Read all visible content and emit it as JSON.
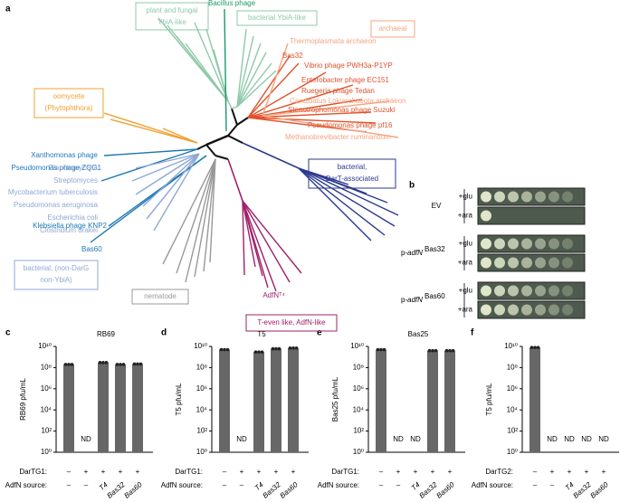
{
  "panel_labels": [
    "a",
    "b",
    "c",
    "d",
    "e",
    "f"
  ],
  "tree": {
    "groups": [
      {
        "label": "plant and fungal",
        "label2": "YbiA-like",
        "color": "#8fc9a9"
      },
      {
        "label": "bacterial YbiA-like",
        "color": "#8fc9a9"
      },
      {
        "label": "archaeal",
        "color": "#f4a582"
      },
      {
        "label": "oomycete",
        "label2": "(Phytophthora)",
        "color": "#f0a030"
      },
      {
        "label": "bacterial,",
        "label2": "DarT-associated",
        "color": "#2b3a8f"
      },
      {
        "label": "bacterial, (non-DarG",
        "label2": "non-YbiA)",
        "color": "#8fa8d4"
      },
      {
        "label": "nematode",
        "color": "#999999"
      },
      {
        "label": "T-even like, AdfN-like",
        "color": "#a0206a"
      }
    ],
    "leaves": [
      {
        "label": "Bacillus phage",
        "color": "#1a9a6a"
      },
      {
        "label": "Thermoplasmata archaeon",
        "color": "#f4a582"
      },
      {
        "label": "Bas32",
        "color": "#e0522c"
      },
      {
        "label": "Vibrio phage PWH3a-P1YP",
        "color": "#e0522c"
      },
      {
        "label": "Enterobacter phage EC151",
        "color": "#e0522c"
      },
      {
        "label": "Ruegeria phage Tedan",
        "color": "#e0522c"
      },
      {
        "label": "Candidatus Lokiarchaeota archaeon",
        "color": "#f4a582"
      },
      {
        "label": "Stenotrophomonas phage Suzuki",
        "color": "#e0522c"
      },
      {
        "label": "Pseudomonas phage pf16",
        "color": "#e0522c"
      },
      {
        "label": "Methanobrevibacter ruminantium",
        "color": "#f4a582"
      },
      {
        "label": "Xanthomonas phage",
        "color": "#1f78b4"
      },
      {
        "label": "Pseudomonas phage ZQG1",
        "color": "#1f78b4"
      },
      {
        "label": "Planctomycetia",
        "color": "#8fa8d4"
      },
      {
        "label": "Streptomyces",
        "color": "#8fa8d4"
      },
      {
        "label": "Mycobacterium tuberculosis",
        "color": "#8fa8d4"
      },
      {
        "label": "Pseudomonas aeruginosa",
        "color": "#8fa8d4"
      },
      {
        "label": "Escherichia coli",
        "color": "#8fa8d4"
      },
      {
        "label": "Clostridium drakei",
        "color": "#8fa8d4"
      },
      {
        "label": "Klebsiella phage KNP2",
        "color": "#1f78b4"
      },
      {
        "label": "Bas60",
        "color": "#1f78b4"
      },
      {
        "label": "AdfNᵀ⁴",
        "color": "#a0206a"
      }
    ]
  },
  "plate": {
    "groups": [
      {
        "label": "EV",
        "rows": [
          "+glu",
          "+ara"
        ]
      },
      {
        "label": "p-",
        "gene": "adfN",
        "sup": "Bas32",
        "rows": [
          "+glu",
          "+ara"
        ]
      },
      {
        "label": "p-",
        "gene": "adfN",
        "sup": "Bas60",
        "rows": [
          "+glu",
          "+ara"
        ]
      }
    ]
  },
  "chart_data": [
    {
      "type": "bar",
      "title": "RB69",
      "y_label": "RB69 pfu/mL",
      "values": [
        200000000,
        null,
        300000000,
        200000000,
        220000000
      ],
      "value_labels": [
        null,
        "ND",
        null,
        null,
        null
      ],
      "color": "#676767",
      "log_scale": true,
      "ylim": [
        1,
        10000000000
      ],
      "yticks": [
        {
          "value": 1,
          "label": "10⁰"
        },
        {
          "value": 100,
          "label": "10²"
        },
        {
          "value": 10000,
          "label": "10⁴"
        },
        {
          "value": 1000000,
          "label": "10⁶"
        },
        {
          "value": 100000000,
          "label": "10⁸"
        },
        {
          "value": 10000000000,
          "label": "10¹⁰"
        }
      ],
      "rows": [
        {
          "label": "DarTG1:",
          "values": [
            "–",
            "+",
            "+",
            "+",
            "+"
          ]
        },
        {
          "label": "AdfN source:",
          "values": [
            "–",
            "–",
            "T4",
            "Bas32",
            "Bas60"
          ]
        }
      ]
    },
    {
      "type": "bar",
      "title": "T5",
      "y_label": "T5 pfu/mL",
      "values": [
        5000000000,
        null,
        3000000000,
        6000000000,
        7000000000
      ],
      "value_labels": [
        null,
        "ND",
        null,
        null,
        null
      ],
      "color": "#676767",
      "log_scale": true,
      "ylim": [
        1,
        10000000000
      ],
      "yticks": [
        {
          "value": 1,
          "label": "10⁰"
        },
        {
          "value": 100,
          "label": "10²"
        },
        {
          "value": 10000,
          "label": "10⁴"
        },
        {
          "value": 1000000,
          "label": "10⁶"
        },
        {
          "value": 100000000,
          "label": "10⁸"
        },
        {
          "value": 10000000000,
          "label": "10¹⁰"
        }
      ],
      "rows": [
        {
          "label": "DarTG1:",
          "values": [
            "–",
            "+",
            "+",
            "+",
            "+"
          ]
        },
        {
          "label": "AdfN source:",
          "values": [
            "–",
            "–",
            "T4",
            "Bas32",
            "Bas60"
          ]
        }
      ]
    },
    {
      "type": "bar",
      "title": "Bas25",
      "y_label": "Bas25 pfu/mL",
      "values": [
        5000000000,
        null,
        null,
        4000000000,
        4000000000
      ],
      "value_labels": [
        null,
        "ND",
        "ND",
        null,
        null
      ],
      "color": "#676767",
      "log_scale": true,
      "ylim": [
        1,
        10000000000
      ],
      "yticks": [
        {
          "value": 1,
          "label": "10⁰"
        },
        {
          "value": 100,
          "label": "10²"
        },
        {
          "value": 10000,
          "label": "10⁴"
        },
        {
          "value": 1000000,
          "label": "10⁶"
        },
        {
          "value": 100000000,
          "label": "10⁸"
        },
        {
          "value": 10000000000,
          "label": "10¹⁰"
        }
      ],
      "rows": [
        {
          "label": "DarTG1:",
          "values": [
            "–",
            "+",
            "+",
            "+",
            "+"
          ]
        },
        {
          "label": "AdfN source:",
          "values": [
            "–",
            "–",
            "T4",
            "Bas32",
            "Bas60"
          ]
        }
      ]
    },
    {
      "type": "bar",
      "y_label": "T5 pfu/mL",
      "values": [
        8000000000,
        null,
        null,
        null,
        null
      ],
      "value_labels": [
        null,
        "ND",
        "ND",
        "ND",
        "ND"
      ],
      "color": "#676767",
      "log_scale": true,
      "ylim": [
        1,
        10000000000
      ],
      "yticks": [
        {
          "value": 1,
          "label": "10⁰"
        },
        {
          "value": 100,
          "label": "10²"
        },
        {
          "value": 10000,
          "label": "10⁴"
        },
        {
          "value": 1000000,
          "label": "10⁶"
        },
        {
          "value": 100000000,
          "label": "10⁸"
        },
        {
          "value": 10000000000,
          "label": "10¹⁰"
        }
      ],
      "rows": [
        {
          "label": "DarTG2:",
          "values": [
            "–",
            "+",
            "+",
            "+",
            "+"
          ]
        },
        {
          "label": "AdfN source:",
          "values": [
            "–",
            "–",
            "T4",
            "Bas32",
            "Bas60"
          ]
        }
      ]
    }
  ]
}
